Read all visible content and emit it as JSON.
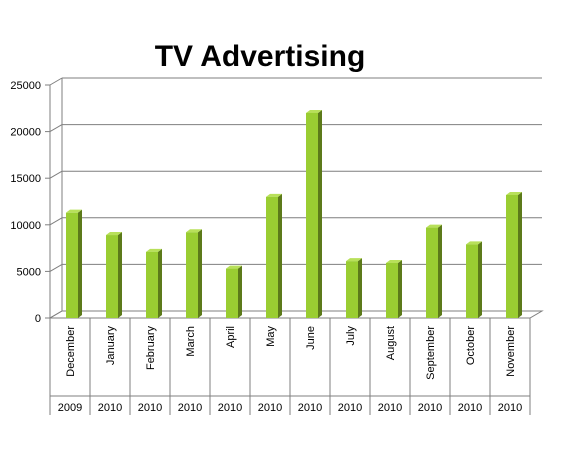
{
  "chart_data": {
    "type": "bar",
    "title": "TV Advertising",
    "categories": [
      "December",
      "January",
      "February",
      "March",
      "April",
      "May",
      "June",
      "July",
      "August",
      "September",
      "October",
      "November"
    ],
    "years": [
      "2009",
      "2010",
      "2010",
      "2010",
      "2010",
      "2010",
      "2010",
      "2010",
      "2010",
      "2010",
      "2010",
      "2010"
    ],
    "values": [
      11300,
      8900,
      7100,
      9200,
      5300,
      13000,
      22000,
      6100,
      5900,
      9700,
      7900,
      13200
    ],
    "yticks": [
      "0",
      "5000",
      "10000",
      "15000",
      "20000",
      "25000"
    ],
    "ylim": [
      0,
      25000
    ],
    "grid": true,
    "legend": "none",
    "colors": {
      "bar_front": "#9acd32",
      "bar_side": "#5c7a1a",
      "bar_top": "#b8e05a",
      "grid": "#7f7f7f",
      "axis": "#7f7f7f"
    }
  }
}
